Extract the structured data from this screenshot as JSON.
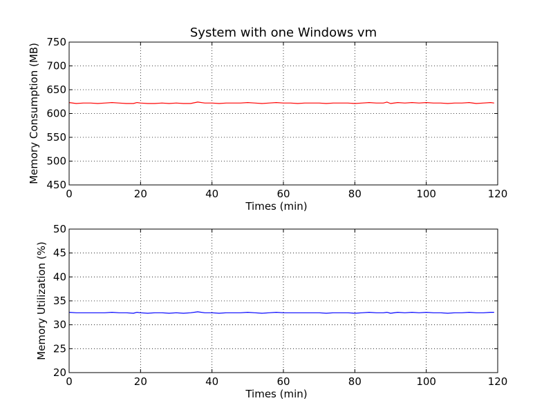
{
  "figure": {
    "title": "System with one Windows vm"
  },
  "chart_data": [
    {
      "type": "line",
      "title": "System with one Windows vm",
      "xlabel": "Times (min)",
      "ylabel": "Memory Consumption (MB)",
      "xlim": [
        0,
        120
      ],
      "ylim": [
        450,
        750
      ],
      "xticks": [
        0,
        20,
        40,
        60,
        80,
        100,
        120
      ],
      "yticks": [
        450,
        500,
        550,
        600,
        650,
        700,
        750
      ],
      "grid": true,
      "grid_style": "dotted",
      "series": [
        {
          "color": "#ff0000",
          "x": [
            0,
            2,
            4,
            6,
            8,
            10,
            12,
            14,
            16,
            18,
            19,
            20,
            22,
            24,
            26,
            28,
            30,
            32,
            34,
            36,
            38,
            40,
            42,
            44,
            46,
            48,
            50,
            52,
            54,
            56,
            58,
            60,
            62,
            64,
            66,
            68,
            70,
            72,
            74,
            76,
            78,
            80,
            82,
            84,
            86,
            88,
            89,
            90,
            92,
            94,
            96,
            98,
            100,
            102,
            104,
            106,
            108,
            110,
            112,
            114,
            116,
            118,
            119
          ],
          "y": [
            623,
            621,
            622,
            622,
            621,
            622,
            623,
            622,
            621,
            621,
            623,
            622,
            621,
            621,
            622,
            621,
            622,
            621,
            621,
            624,
            622,
            622,
            621,
            622,
            622,
            622,
            623,
            622,
            621,
            622,
            623,
            622,
            622,
            621,
            622,
            622,
            622,
            621,
            622,
            622,
            622,
            621,
            622,
            623,
            622,
            622,
            624,
            621,
            623,
            622,
            623,
            622,
            623,
            622,
            622,
            621,
            622,
            622,
            623,
            621,
            622,
            623,
            622
          ]
        }
      ]
    },
    {
      "type": "line",
      "title": "",
      "xlabel": "Times (min)",
      "ylabel": "Memory Utilization (%)",
      "xlim": [
        0,
        120
      ],
      "ylim": [
        20,
        50
      ],
      "xticks": [
        0,
        20,
        40,
        60,
        80,
        100,
        120
      ],
      "yticks": [
        20,
        25,
        30,
        35,
        40,
        45,
        50
      ],
      "grid": true,
      "grid_style": "dotted",
      "series": [
        {
          "color": "#0000ff",
          "x": [
            0,
            2,
            4,
            6,
            8,
            10,
            12,
            14,
            16,
            18,
            19,
            20,
            22,
            24,
            26,
            28,
            30,
            32,
            34,
            36,
            38,
            40,
            42,
            44,
            46,
            48,
            50,
            52,
            54,
            56,
            58,
            60,
            62,
            64,
            66,
            68,
            70,
            72,
            74,
            76,
            78,
            80,
            82,
            84,
            86,
            88,
            89,
            90,
            92,
            94,
            96,
            98,
            100,
            102,
            104,
            106,
            108,
            110,
            112,
            114,
            116,
            118,
            119
          ],
          "y": [
            32.6,
            32.5,
            32.5,
            32.5,
            32.5,
            32.5,
            32.6,
            32.5,
            32.5,
            32.4,
            32.6,
            32.5,
            32.4,
            32.5,
            32.5,
            32.4,
            32.5,
            32.4,
            32.5,
            32.7,
            32.5,
            32.5,
            32.4,
            32.5,
            32.5,
            32.5,
            32.6,
            32.5,
            32.4,
            32.5,
            32.6,
            32.5,
            32.5,
            32.5,
            32.5,
            32.5,
            32.5,
            32.4,
            32.5,
            32.5,
            32.5,
            32.4,
            32.5,
            32.6,
            32.5,
            32.5,
            32.6,
            32.4,
            32.6,
            32.5,
            32.6,
            32.5,
            32.6,
            32.5,
            32.5,
            32.4,
            32.5,
            32.5,
            32.6,
            32.5,
            32.5,
            32.6,
            32.6
          ]
        }
      ]
    }
  ]
}
